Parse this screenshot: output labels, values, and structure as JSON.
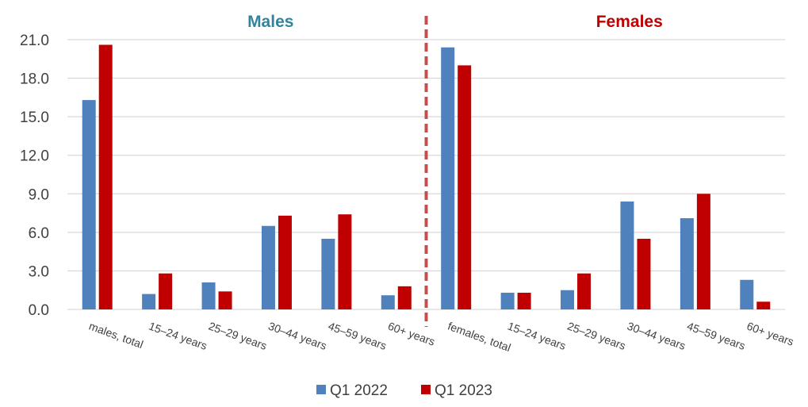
{
  "chart_data": {
    "type": "bar",
    "group_titles": [
      {
        "label": "Males",
        "color": "#31849B"
      },
      {
        "label": "Females",
        "color": "#C00000"
      }
    ],
    "categories": [
      "males, total",
      "15–24 years",
      "25–29 years",
      "30–44 years",
      "45–59 years",
      "60+ years",
      "females, total",
      "15–24 years",
      "25–29 years",
      "30–44 years",
      "45–59 years",
      "60+ years"
    ],
    "series": [
      {
        "name": "Q1 2022",
        "color": "#4F81BD",
        "values": [
          16.3,
          1.2,
          2.1,
          6.5,
          5.5,
          1.1,
          20.4,
          1.3,
          1.5,
          8.4,
          7.1,
          2.3
        ]
      },
      {
        "name": "Q1 2023",
        "color": "#C00000",
        "values": [
          20.6,
          2.8,
          1.4,
          7.3,
          7.4,
          1.8,
          19.0,
          1.3,
          2.8,
          5.5,
          9.0,
          0.6
        ]
      }
    ],
    "yticks": [
      "0.0",
      "3.0",
      "6.0",
      "9.0",
      "12.0",
      "15.0",
      "18.0",
      "21.0"
    ],
    "ylim": [
      0,
      21
    ],
    "grid": true,
    "legend_position": "bottom",
    "divider_color": "#C0504D",
    "divider_after_category": 5
  }
}
